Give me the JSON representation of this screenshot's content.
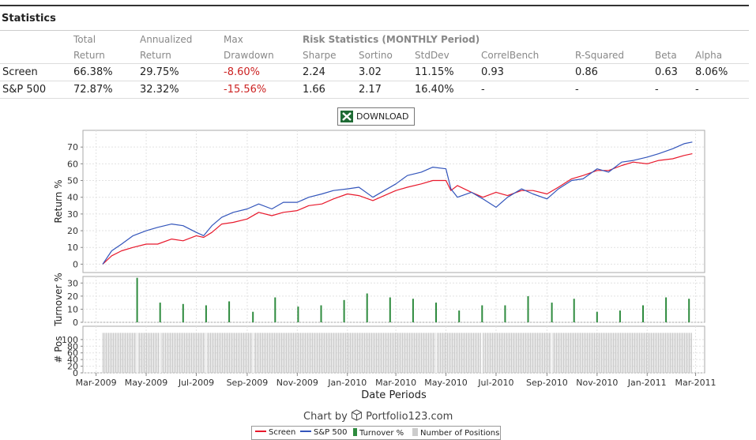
{
  "section_title": "Statistics",
  "table": {
    "header_row1": [
      "Total",
      "Annualized",
      "Max",
      "Risk Statistics (MONTHLY Period)"
    ],
    "header_row2": [
      "Return",
      "Return",
      "Drawdown",
      "Sharpe",
      "Sortino",
      "StdDev",
      "CorrelBench",
      "R-Squared",
      "Beta",
      "Alpha"
    ],
    "rows": [
      {
        "name": "Screen",
        "total": "66.38%",
        "annualized": "29.75%",
        "drawdown": "-8.60%",
        "sharpe": "2.24",
        "sortino": "3.02",
        "stddev": "11.15%",
        "correl": "0.93",
        "rsq": "0.86",
        "beta": "0.63",
        "alpha": "8.06%"
      },
      {
        "name": "S&P 500",
        "total": "72.87%",
        "annualized": "32.32%",
        "drawdown": "-15.56%",
        "sharpe": "1.66",
        "sortino": "2.17",
        "stddev": "16.40%",
        "correl": "-",
        "rsq": "-",
        "beta": "-",
        "alpha": "-"
      }
    ]
  },
  "download_label": "DOWNLOAD",
  "credit": {
    "prefix": "Chart by",
    "brand": "Portfolio123.com"
  },
  "legend": [
    "Screen",
    "S&P 500",
    "Turnover %",
    "Number of Positions"
  ],
  "colors": {
    "screen": "#e8192c",
    "sp500": "#3355bb",
    "turnover": "#2e8b3e",
    "positions": "#cccccc",
    "negative": "#cc2222"
  },
  "chart_data": {
    "type": "line",
    "xlabel": "Date Periods",
    "x_ticks": [
      "Mar-2009",
      "May-2009",
      "Jul-2009",
      "Sep-2009",
      "Nov-2009",
      "Jan-2010",
      "Mar-2010",
      "May-2010",
      "Jul-2010",
      "Sep-2010",
      "Nov-2010",
      "Jan-2011",
      "Mar-2011"
    ],
    "return_panel": {
      "ylabel": "Return %",
      "ylim": [
        -5,
        80
      ],
      "yticks": [
        0,
        10,
        20,
        30,
        40,
        50,
        60,
        70
      ],
      "series": [
        {
          "name": "Screen",
          "color": "#e8192c",
          "x": [
            "2009-03-09",
            "2009-03-20",
            "2009-04-01",
            "2009-04-15",
            "2009-05-01",
            "2009-05-15",
            "2009-06-01",
            "2009-06-15",
            "2009-07-01",
            "2009-07-10",
            "2009-07-20",
            "2009-08-01",
            "2009-08-15",
            "2009-09-01",
            "2009-09-15",
            "2009-10-01",
            "2009-10-15",
            "2009-11-01",
            "2009-11-15",
            "2009-12-01",
            "2009-12-15",
            "2010-01-01",
            "2010-01-15",
            "2010-02-01",
            "2010-02-15",
            "2010-03-01",
            "2010-03-15",
            "2010-04-01",
            "2010-04-15",
            "2010-05-01",
            "2010-05-07",
            "2010-05-15",
            "2010-06-01",
            "2010-06-15",
            "2010-07-01",
            "2010-07-15",
            "2010-08-01",
            "2010-08-15",
            "2010-09-01",
            "2010-09-15",
            "2010-10-01",
            "2010-10-15",
            "2010-11-01",
            "2010-11-15",
            "2010-12-01",
            "2010-12-15",
            "2011-01-01",
            "2011-01-15",
            "2011-02-01",
            "2011-02-15",
            "2011-02-25"
          ],
          "values": [
            0,
            5,
            8,
            10,
            12,
            12,
            15,
            14,
            17,
            16,
            19,
            24,
            25,
            27,
            31,
            29,
            31,
            32,
            35,
            36,
            39,
            42,
            41,
            38,
            41,
            44,
            46,
            48,
            50,
            50,
            44,
            47,
            43,
            40,
            43,
            41,
            44,
            44,
            42,
            46,
            51,
            53,
            56,
            56,
            59,
            61,
            60,
            62,
            63,
            65,
            66
          ]
        },
        {
          "name": "S&P 500",
          "color": "#3355bb",
          "x": [
            "2009-03-09",
            "2009-03-20",
            "2009-04-01",
            "2009-04-15",
            "2009-05-01",
            "2009-05-15",
            "2009-06-01",
            "2009-06-15",
            "2009-07-01",
            "2009-07-10",
            "2009-07-20",
            "2009-08-01",
            "2009-08-15",
            "2009-09-01",
            "2009-09-15",
            "2009-10-01",
            "2009-10-15",
            "2009-11-01",
            "2009-11-15",
            "2009-12-01",
            "2009-12-15",
            "2010-01-01",
            "2010-01-15",
            "2010-02-01",
            "2010-02-15",
            "2010-03-01",
            "2010-03-15",
            "2010-04-01",
            "2010-04-15",
            "2010-05-01",
            "2010-05-07",
            "2010-05-15",
            "2010-06-01",
            "2010-06-15",
            "2010-07-01",
            "2010-07-15",
            "2010-08-01",
            "2010-08-15",
            "2010-09-01",
            "2010-09-15",
            "2010-10-01",
            "2010-10-15",
            "2010-11-01",
            "2010-11-15",
            "2010-12-01",
            "2010-12-15",
            "2011-01-01",
            "2011-01-15",
            "2011-02-01",
            "2011-02-15",
            "2011-02-25"
          ],
          "values": [
            0,
            8,
            12,
            17,
            20,
            22,
            24,
            23,
            19,
            17,
            23,
            28,
            31,
            33,
            36,
            33,
            37,
            37,
            40,
            42,
            44,
            45,
            46,
            40,
            44,
            48,
            53,
            55,
            58,
            57,
            45,
            40,
            43,
            39,
            34,
            40,
            45,
            42,
            39,
            45,
            50,
            51,
            57,
            55,
            61,
            62,
            64,
            66,
            69,
            72,
            73
          ]
        }
      ]
    },
    "turnover_panel": {
      "ylabel": "Turnover %",
      "ylim": [
        0,
        35
      ],
      "yticks": [
        0,
        10,
        20,
        30
      ],
      "series": [
        {
          "name": "Turnover %",
          "color": "#2e8b3e",
          "x": [
            "2009-04-20",
            "2009-05-18",
            "2009-06-15",
            "2009-07-13",
            "2009-08-10",
            "2009-09-08",
            "2009-10-05",
            "2009-11-02",
            "2009-11-30",
            "2009-12-28",
            "2010-01-25",
            "2010-02-22",
            "2010-03-22",
            "2010-04-19",
            "2010-05-17",
            "2010-06-14",
            "2010-07-12",
            "2010-08-09",
            "2010-09-07",
            "2010-10-04",
            "2010-11-01",
            "2010-11-29",
            "2010-12-27",
            "2011-01-24",
            "2011-02-21"
          ],
          "values": [
            34,
            15,
            14,
            13,
            16,
            8,
            19,
            12,
            13,
            17,
            22,
            19,
            18,
            15,
            9,
            13,
            13,
            20,
            15,
            18,
            8,
            9,
            13,
            19,
            18
          ]
        }
      ]
    },
    "positions_panel": {
      "ylabel": "# Pos",
      "ylim": [
        0,
        140
      ],
      "yticks": [
        0,
        20,
        40,
        60,
        80,
        100
      ],
      "series": [
        {
          "name": "Number of Positions",
          "color": "#cccccc",
          "x_range": [
            "2009-03-09",
            "2011-02-25"
          ],
          "value": 120
        }
      ]
    }
  }
}
